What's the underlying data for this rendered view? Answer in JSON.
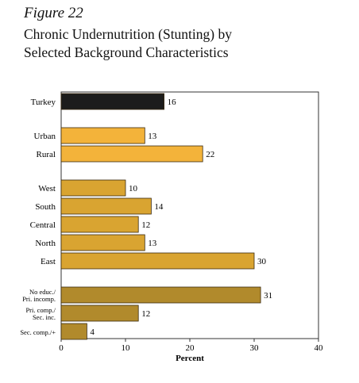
{
  "figure_label": "Figure 22",
  "title_line1": "Chronic Undernutrition (Stunting) by",
  "title_line2": "Selected Background Characteristics",
  "chart_data": {
    "type": "bar",
    "orientation": "horizontal",
    "xlabel": "Percent",
    "xlim": [
      0,
      40
    ],
    "xticks": [
      0,
      10,
      20,
      30,
      40
    ],
    "grid": false,
    "groups": [
      {
        "color": "#1c1c1c",
        "items": [
          {
            "label": "Turkey",
            "value": 16
          }
        ]
      },
      {
        "color": "#f3b33a",
        "items": [
          {
            "label": "Urban",
            "value": 13
          },
          {
            "label": "Rural",
            "value": 22
          }
        ]
      },
      {
        "color": "#d9a431",
        "items": [
          {
            "label": "West",
            "value": 10
          },
          {
            "label": "South",
            "value": 14
          },
          {
            "label": "Central",
            "value": 12
          },
          {
            "label": "North",
            "value": 13
          },
          {
            "label": "East",
            "value": 30
          }
        ]
      },
      {
        "color": "#b18a2c",
        "items": [
          {
            "label": "No educ./ Pri. incomp.",
            "value": 31
          },
          {
            "label": "Pri. comp./ Sec. inc.",
            "value": 12
          },
          {
            "label": "Sec. comp./+",
            "value": 4
          }
        ]
      }
    ]
  }
}
